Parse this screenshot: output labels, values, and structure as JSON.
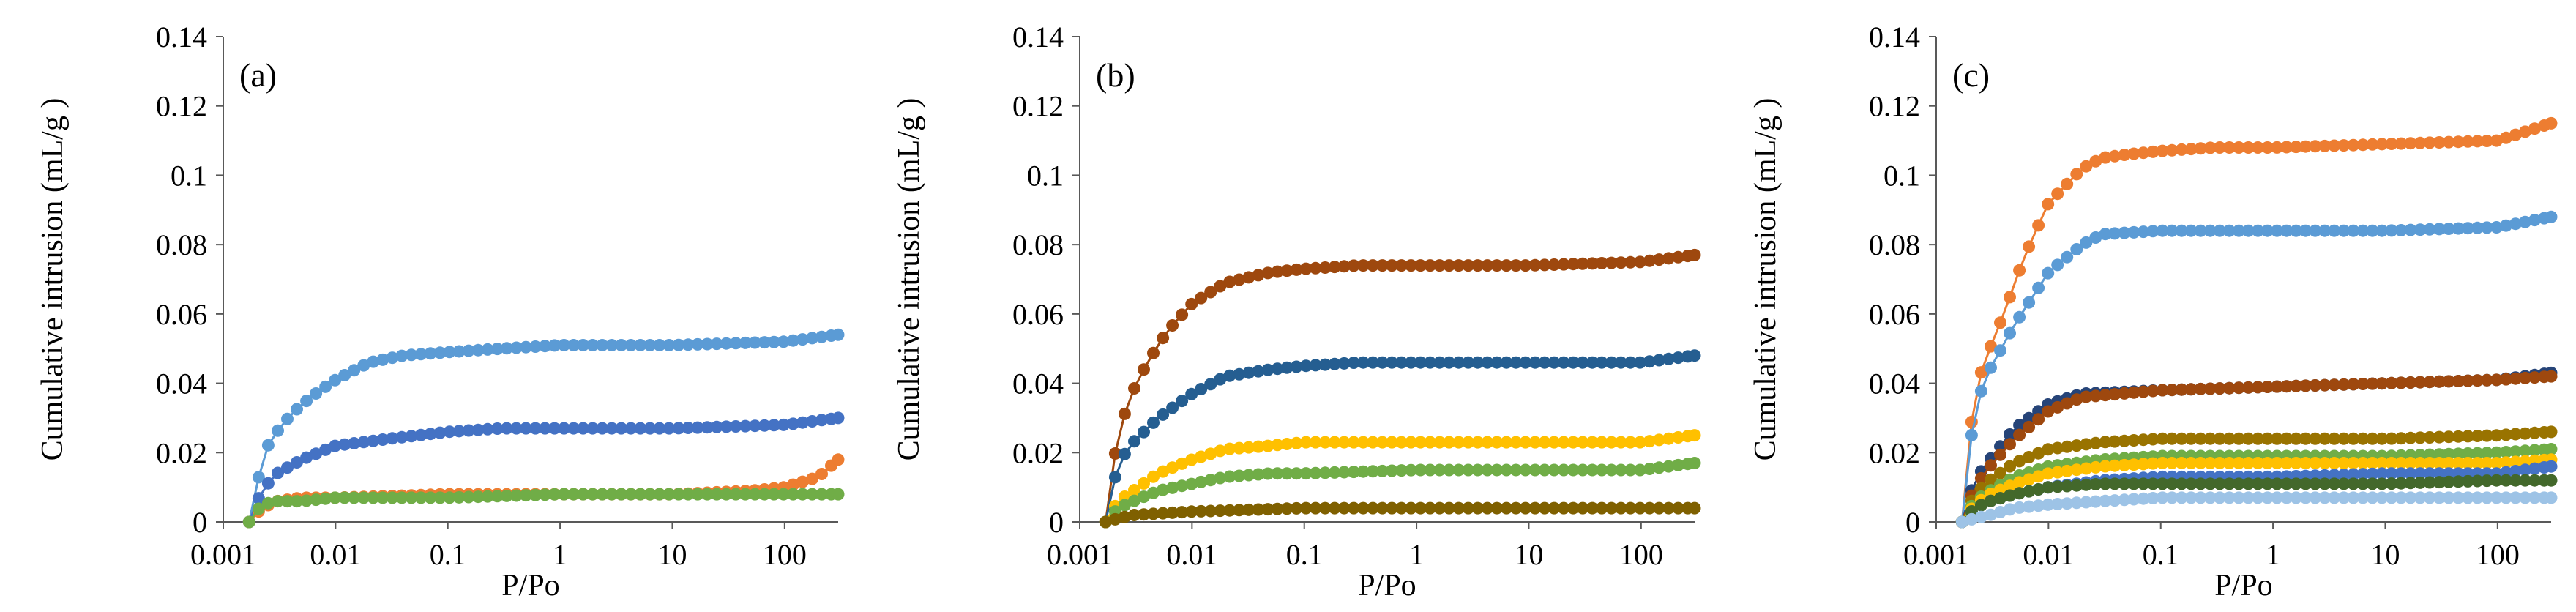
{
  "chart_data": [
    {
      "type": "line",
      "panel_label": "(a)",
      "xlabel": "P/Po",
      "ylabel": "Cumulative intrusion (mL/g )",
      "xscale": "log",
      "xlim": [
        0.001,
        300
      ],
      "ylim": [
        0,
        0.14
      ],
      "xticks": [
        "0.001",
        "0.01",
        "0.1",
        "1",
        "10",
        "100"
      ],
      "yticks": [
        "0",
        "0.02",
        "0.04",
        "0.06",
        "0.08",
        "0.1",
        "0.12",
        "0.14"
      ],
      "series": [
        {
          "name": "a-light-blue",
          "color": "#5b9bd5",
          "final": 0.054,
          "shape": [
            [
              0.0017,
              0
            ],
            [
              0.0022,
              0.017
            ],
            [
              0.0025,
              0.022
            ],
            [
              0.003,
              0.026
            ],
            [
              0.004,
              0.031
            ],
            [
              0.006,
              0.036
            ],
            [
              0.01,
              0.041
            ],
            [
              0.02,
              0.046
            ],
            [
              0.04,
              0.048
            ],
            [
              0.1,
              0.049
            ],
            [
              0.3,
              0.05
            ],
            [
              1,
              0.051
            ],
            [
              10,
              0.051
            ],
            [
              100,
              0.052
            ],
            [
              300,
              0.054
            ]
          ]
        },
        {
          "name": "a-blue",
          "color": "#4472c4",
          "final": 0.03,
          "shape": [
            [
              0.0017,
              0
            ],
            [
              0.0022,
              0.009
            ],
            [
              0.003,
              0.014
            ],
            [
              0.005,
              0.018
            ],
            [
              0.01,
              0.022
            ],
            [
              0.03,
              0.024
            ],
            [
              0.1,
              0.026
            ],
            [
              0.3,
              0.027
            ],
            [
              1,
              0.027
            ],
            [
              10,
              0.027
            ],
            [
              100,
              0.028
            ],
            [
              300,
              0.03
            ]
          ]
        },
        {
          "name": "a-orange",
          "color": "#ed7d31",
          "final": 0.018,
          "shape": [
            [
              0.0017,
              0
            ],
            [
              0.0022,
              0.004
            ],
            [
              0.003,
              0.006
            ],
            [
              0.005,
              0.007
            ],
            [
              0.01,
              0.007
            ],
            [
              0.1,
              0.008
            ],
            [
              1,
              0.008
            ],
            [
              10,
              0.008
            ],
            [
              50,
              0.009
            ],
            [
              100,
              0.01
            ],
            [
              200,
              0.013
            ],
            [
              300,
              0.018
            ]
          ]
        },
        {
          "name": "a-green",
          "color": "#70ad47",
          "final": 0.008,
          "shape": [
            [
              0.0017,
              0
            ],
            [
              0.0022,
              0.005
            ],
            [
              0.003,
              0.006
            ],
            [
              0.005,
              0.006
            ],
            [
              0.01,
              0.007
            ],
            [
              0.1,
              0.007
            ],
            [
              1,
              0.008
            ],
            [
              10,
              0.008
            ],
            [
              100,
              0.008
            ],
            [
              300,
              0.008
            ]
          ]
        }
      ]
    },
    {
      "type": "line",
      "panel_label": "(b)",
      "xlabel": "P/Po",
      "ylabel": "Cumulative intrusion (mL/g )",
      "xscale": "log",
      "xlim": [
        0.001,
        300
      ],
      "ylim": [
        0,
        0.14
      ],
      "xticks": [
        "0.001",
        "0.01",
        "0.1",
        "1",
        "10",
        "100"
      ],
      "yticks": [
        "0",
        "0.02",
        "0.04",
        "0.06",
        "0.08",
        "0.1",
        "0.12",
        "0.14"
      ],
      "series": [
        {
          "name": "b-brown",
          "color": "#9e480e",
          "final": 0.077,
          "shape": [
            [
              0.0017,
              0
            ],
            [
              0.0022,
              0.026
            ],
            [
              0.003,
              0.038
            ],
            [
              0.004,
              0.046
            ],
            [
              0.006,
              0.055
            ],
            [
              0.01,
              0.063
            ],
            [
              0.02,
              0.069
            ],
            [
              0.05,
              0.072
            ],
            [
              0.1,
              0.073
            ],
            [
              0.3,
              0.074
            ],
            [
              1,
              0.074
            ],
            [
              10,
              0.074
            ],
            [
              100,
              0.075
            ],
            [
              300,
              0.077
            ]
          ]
        },
        {
          "name": "b-dark-blue",
          "color": "#255e91",
          "final": 0.048,
          "shape": [
            [
              0.0017,
              0
            ],
            [
              0.0022,
              0.017
            ],
            [
              0.003,
              0.023
            ],
            [
              0.005,
              0.03
            ],
            [
              0.01,
              0.037
            ],
            [
              0.02,
              0.042
            ],
            [
              0.05,
              0.044
            ],
            [
              0.1,
              0.045
            ],
            [
              0.3,
              0.046
            ],
            [
              1,
              0.046
            ],
            [
              10,
              0.046
            ],
            [
              100,
              0.046
            ],
            [
              300,
              0.048
            ]
          ]
        },
        {
          "name": "b-yellow",
          "color": "#ffc000",
          "final": 0.025,
          "shape": [
            [
              0.0017,
              0
            ],
            [
              0.0022,
              0.006
            ],
            [
              0.003,
              0.009
            ],
            [
              0.005,
              0.014
            ],
            [
              0.01,
              0.018
            ],
            [
              0.02,
              0.021
            ],
            [
              0.05,
              0.022
            ],
            [
              0.1,
              0.023
            ],
            [
              1,
              0.023
            ],
            [
              10,
              0.023
            ],
            [
              100,
              0.023
            ],
            [
              300,
              0.025
            ]
          ]
        },
        {
          "name": "b-green",
          "color": "#70ad47",
          "final": 0.017,
          "shape": [
            [
              0.0017,
              0
            ],
            [
              0.0022,
              0.004
            ],
            [
              0.003,
              0.006
            ],
            [
              0.005,
              0.009
            ],
            [
              0.01,
              0.011
            ],
            [
              0.02,
              0.013
            ],
            [
              0.05,
              0.014
            ],
            [
              0.1,
              0.014
            ],
            [
              1,
              0.015
            ],
            [
              10,
              0.015
            ],
            [
              100,
              0.015
            ],
            [
              300,
              0.017
            ]
          ]
        },
        {
          "name": "b-olive",
          "color": "#7f6000",
          "final": 0.004,
          "shape": [
            [
              0.0017,
              0
            ],
            [
              0.0022,
              0.001
            ],
            [
              0.003,
              0.002
            ],
            [
              0.01,
              0.003
            ],
            [
              0.1,
              0.004
            ],
            [
              1,
              0.004
            ],
            [
              10,
              0.004
            ],
            [
              100,
              0.004
            ],
            [
              300,
              0.004
            ]
          ]
        }
      ]
    },
    {
      "type": "line",
      "panel_label": "(c)",
      "xlabel": "P/Po",
      "ylabel": "Cumulative intrusion (mL/g )",
      "xscale": "log",
      "xlim": [
        0.001,
        300
      ],
      "ylim": [
        0,
        0.14
      ],
      "xticks": [
        "0.001",
        "0.01",
        "0.1",
        "1",
        "10",
        "100"
      ],
      "yticks": [
        "0",
        "0.02",
        "0.04",
        "0.06",
        "0.08",
        "0.1",
        "0.12",
        "0.14"
      ],
      "series": [
        {
          "name": "c-orange",
          "color": "#ed7d31",
          "final": 0.115,
          "shape": [
            [
              0.0017,
              0
            ],
            [
              0.0022,
              0.038
            ],
            [
              0.003,
              0.05
            ],
            [
              0.004,
              0.06
            ],
            [
              0.006,
              0.076
            ],
            [
              0.01,
              0.092
            ],
            [
              0.02,
              0.102
            ],
            [
              0.03,
              0.105
            ],
            [
              0.05,
              0.106
            ],
            [
              0.1,
              0.107
            ],
            [
              0.3,
              0.108
            ],
            [
              1,
              0.108
            ],
            [
              10,
              0.109
            ],
            [
              100,
              0.11
            ],
            [
              300,
              0.115
            ]
          ]
        },
        {
          "name": "c-light-blue",
          "color": "#5b9bd5",
          "final": 0.088,
          "shape": [
            [
              0.0017,
              0
            ],
            [
              0.0022,
              0.033
            ],
            [
              0.003,
              0.044
            ],
            [
              0.005,
              0.057
            ],
            [
              0.01,
              0.072
            ],
            [
              0.02,
              0.08
            ],
            [
              0.03,
              0.083
            ],
            [
              0.1,
              0.084
            ],
            [
              1,
              0.084
            ],
            [
              10,
              0.084
            ],
            [
              100,
              0.085
            ],
            [
              300,
              0.088
            ]
          ]
        },
        {
          "name": "c-navy",
          "color": "#264478",
          "final": 0.043,
          "shape": [
            [
              0.0017,
              0
            ],
            [
              0.0022,
              0.012
            ],
            [
              0.003,
              0.018
            ],
            [
              0.005,
              0.027
            ],
            [
              0.01,
              0.034
            ],
            [
              0.02,
              0.037
            ],
            [
              0.1,
              0.038
            ],
            [
              1,
              0.039
            ],
            [
              10,
              0.04
            ],
            [
              100,
              0.041
            ],
            [
              300,
              0.043
            ]
          ]
        },
        {
          "name": "c-brown",
          "color": "#9e480e",
          "final": 0.042,
          "shape": [
            [
              0.0017,
              0
            ],
            [
              0.0022,
              0.01
            ],
            [
              0.003,
              0.016
            ],
            [
              0.005,
              0.024
            ],
            [
              0.01,
              0.032
            ],
            [
              0.02,
              0.036
            ],
            [
              0.1,
              0.038
            ],
            [
              1,
              0.039
            ],
            [
              10,
              0.04
            ],
            [
              100,
              0.041
            ],
            [
              300,
              0.042
            ]
          ]
        },
        {
          "name": "c-olive",
          "color": "#997300",
          "final": 0.026,
          "shape": [
            [
              0.0017,
              0
            ],
            [
              0.0022,
              0.008
            ],
            [
              0.003,
              0.012
            ],
            [
              0.005,
              0.017
            ],
            [
              0.01,
              0.021
            ],
            [
              0.03,
              0.023
            ],
            [
              0.1,
              0.024
            ],
            [
              1,
              0.024
            ],
            [
              10,
              0.024
            ],
            [
              100,
              0.025
            ],
            [
              300,
              0.026
            ]
          ]
        },
        {
          "name": "c-green",
          "color": "#70ad47",
          "final": 0.021,
          "shape": [
            [
              0.0017,
              0
            ],
            [
              0.0022,
              0.006
            ],
            [
              0.003,
              0.009
            ],
            [
              0.005,
              0.013
            ],
            [
              0.01,
              0.016
            ],
            [
              0.03,
              0.018
            ],
            [
              0.1,
              0.019
            ],
            [
              1,
              0.019
            ],
            [
              10,
              0.019
            ],
            [
              100,
              0.02
            ],
            [
              300,
              0.021
            ]
          ]
        },
        {
          "name": "c-yellow",
          "color": "#ffc000",
          "final": 0.018,
          "shape": [
            [
              0.0017,
              0
            ],
            [
              0.0022,
              0.005
            ],
            [
              0.003,
              0.008
            ],
            [
              0.005,
              0.011
            ],
            [
              0.01,
              0.014
            ],
            [
              0.03,
              0.016
            ],
            [
              0.1,
              0.017
            ],
            [
              1,
              0.017
            ],
            [
              10,
              0.017
            ],
            [
              100,
              0.017
            ],
            [
              300,
              0.018
            ]
          ]
        },
        {
          "name": "c-blue",
          "color": "#4472c4",
          "final": 0.016,
          "shape": [
            [
              0.0017,
              0
            ],
            [
              0.0022,
              0.004
            ],
            [
              0.003,
              0.006
            ],
            [
              0.005,
              0.008
            ],
            [
              0.01,
              0.01
            ],
            [
              0.03,
              0.012
            ],
            [
              0.1,
              0.013
            ],
            [
              1,
              0.013
            ],
            [
              10,
              0.014
            ],
            [
              100,
              0.014
            ],
            [
              300,
              0.016
            ]
          ]
        },
        {
          "name": "c-dark-green",
          "color": "#43682b",
          "final": 0.012,
          "shape": [
            [
              0.0017,
              0
            ],
            [
              0.0022,
              0.004
            ],
            [
              0.003,
              0.006
            ],
            [
              0.005,
              0.008
            ],
            [
              0.01,
              0.01
            ],
            [
              0.03,
              0.011
            ],
            [
              0.1,
              0.011
            ],
            [
              1,
              0.011
            ],
            [
              10,
              0.011
            ],
            [
              100,
              0.012
            ],
            [
              300,
              0.012
            ]
          ]
        },
        {
          "name": "c-sky",
          "color": "#9dc3e6",
          "final": 0.007,
          "shape": [
            [
              0.0017,
              0
            ],
            [
              0.0022,
              0.001
            ],
            [
              0.003,
              0.002
            ],
            [
              0.005,
              0.004
            ],
            [
              0.01,
              0.005
            ],
            [
              0.03,
              0.006
            ],
            [
              0.1,
              0.007
            ],
            [
              1,
              0.007
            ],
            [
              10,
              0.007
            ],
            [
              100,
              0.007
            ],
            [
              300,
              0.007
            ]
          ]
        }
      ]
    }
  ]
}
